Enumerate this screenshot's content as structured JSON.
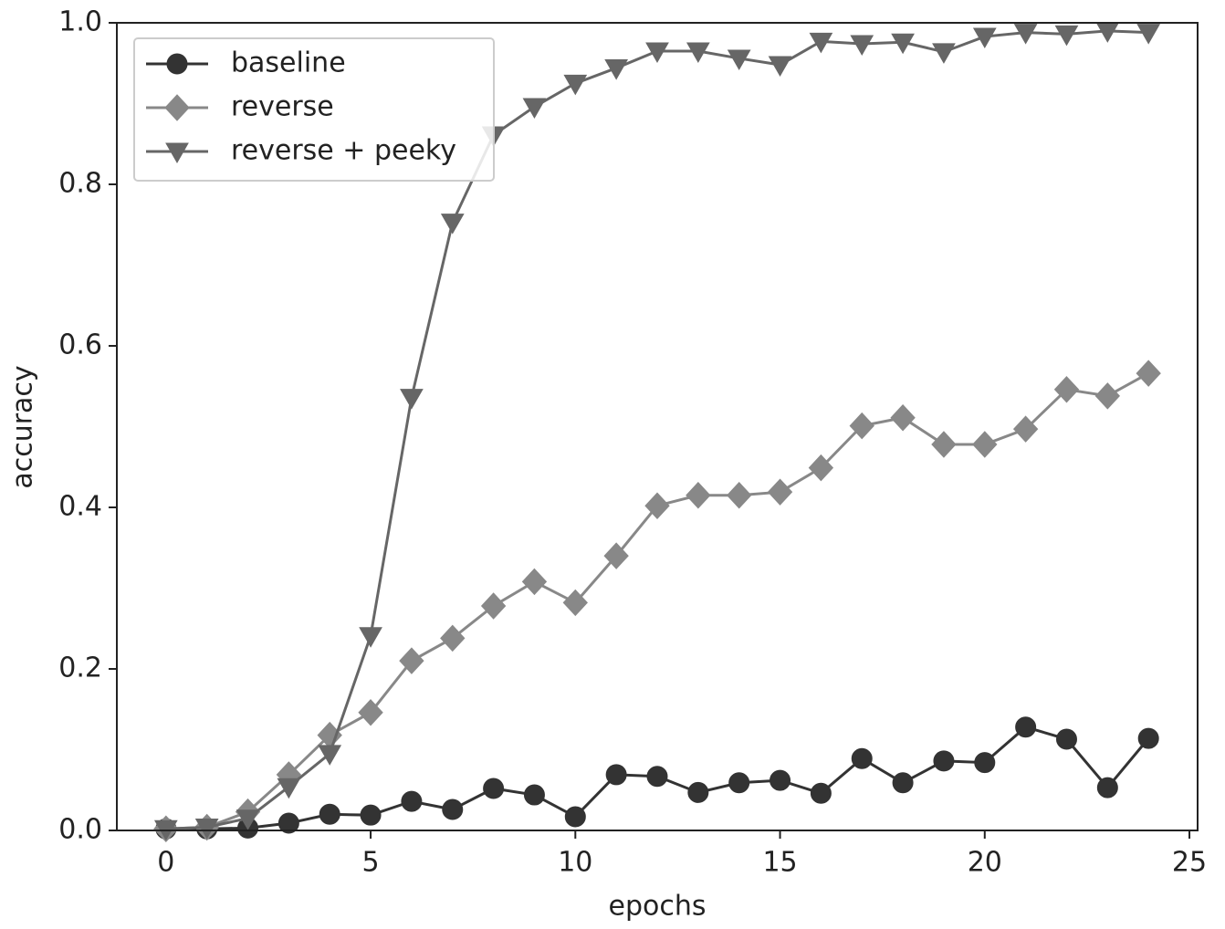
{
  "chart_data": {
    "type": "line",
    "x_label": "epochs",
    "y_label": "accuracy",
    "x": [
      0,
      1,
      2,
      3,
      4,
      5,
      6,
      7,
      8,
      9,
      10,
      11,
      12,
      13,
      14,
      15,
      16,
      17,
      18,
      19,
      20,
      21,
      22,
      23,
      24
    ],
    "series": [
      {
        "name": "baseline",
        "color": "#333333",
        "marker": "circle",
        "values": [
          0.002,
          0.002,
          0.003,
          0.009,
          0.02,
          0.019,
          0.036,
          0.026,
          0.052,
          0.044,
          0.017,
          0.069,
          0.067,
          0.047,
          0.059,
          0.062,
          0.046,
          0.089,
          0.059,
          0.086,
          0.084,
          0.128,
          0.113,
          0.053,
          0.114
        ]
      },
      {
        "name": "reverse",
        "color": "#888888",
        "marker": "diamond",
        "values": [
          0.002,
          0.004,
          0.023,
          0.069,
          0.118,
          0.146,
          0.21,
          0.238,
          0.278,
          0.308,
          0.282,
          0.34,
          0.402,
          0.415,
          0.415,
          0.419,
          0.449,
          0.501,
          0.511,
          0.478,
          0.478,
          0.497,
          0.546,
          0.538,
          0.566
        ]
      },
      {
        "name": "reverse + peeky",
        "color": "#666666",
        "marker": "triangle-down",
        "values": [
          0.002,
          0.004,
          0.015,
          0.054,
          0.095,
          0.241,
          0.536,
          0.753,
          0.861,
          0.896,
          0.925,
          0.944,
          0.965,
          0.965,
          0.956,
          0.948,
          0.977,
          0.974,
          0.976,
          0.964,
          0.983,
          0.988,
          0.986,
          0.99,
          0.988
        ]
      }
    ],
    "xlim": [
      -1.2,
      25.2
    ],
    "xticks": [
      0,
      5,
      10,
      15,
      20,
      25
    ],
    "ylim": [
      0,
      1
    ],
    "yticks": [
      {
        "value": 0,
        "label": "0.0"
      },
      0.2,
      0.4,
      0.6,
      0.8,
      {
        "value": 1,
        "label": "1.0"
      }
    ],
    "grid": false,
    "legend": "upper left"
  }
}
